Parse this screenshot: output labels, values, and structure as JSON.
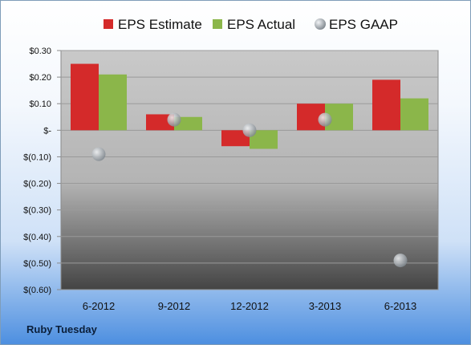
{
  "company": "Ruby Tuesday",
  "legend": [
    {
      "label": "EPS Estimate",
      "color": "#d42a2a",
      "shape": "square"
    },
    {
      "label": "EPS Actual",
      "color": "#8bb64a",
      "shape": "square"
    },
    {
      "label": "EPS GAAP",
      "color": "#c7d2dc",
      "shape": "circle"
    }
  ],
  "chart_data": {
    "type": "bar",
    "categories": [
      "6-2012",
      "9-2012",
      "12-2012",
      "3-2013",
      "6-2013"
    ],
    "series": [
      {
        "name": "EPS Estimate",
        "type": "bar",
        "color": "#d42a2a",
        "values": [
          0.25,
          0.06,
          -0.06,
          0.1,
          0.19
        ]
      },
      {
        "name": "EPS Actual",
        "type": "bar",
        "color": "#8bb64a",
        "values": [
          0.21,
          0.05,
          -0.07,
          0.1,
          0.12
        ]
      },
      {
        "name": "EPS GAAP",
        "type": "scatter",
        "color": "#9aa3ab",
        "values": [
          -0.09,
          0.04,
          0.0,
          0.04,
          -0.49
        ]
      }
    ],
    "yticks": [
      0.3,
      0.2,
      0.1,
      0.0,
      -0.1,
      -0.2,
      -0.3,
      -0.4,
      -0.5,
      -0.6
    ],
    "ytick_labels": [
      "$0.30",
      "$0.20",
      "$0.10",
      "$-",
      "$(0.10)",
      "$(0.20)",
      "$(0.30)",
      "$(0.40)",
      "$(0.50)",
      "$(0.60)"
    ],
    "ylim": [
      -0.6,
      0.3
    ],
    "grid": true,
    "legend_position": "top"
  }
}
